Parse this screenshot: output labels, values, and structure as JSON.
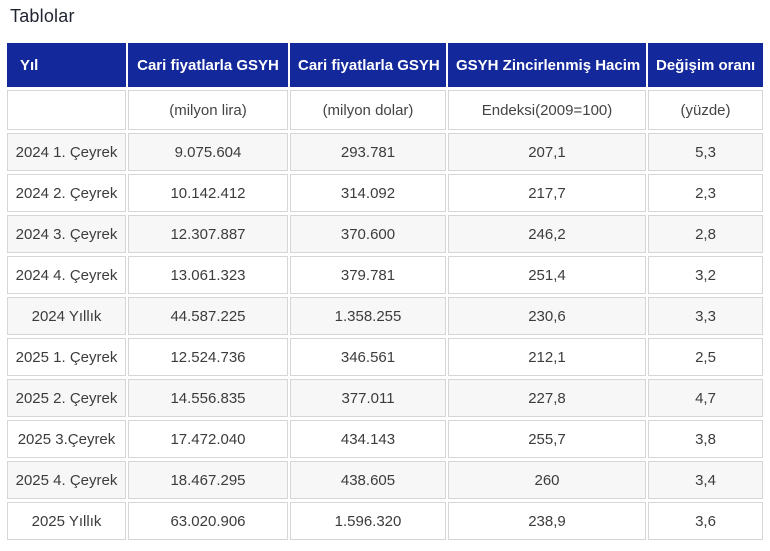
{
  "page": {
    "title": "Tablolar"
  },
  "colors": {
    "header_background": "#13289b",
    "header_text": "#ffffff",
    "row_stripe": "#f7f7f7",
    "cell_border": "#d6d6d6",
    "body_text": "#3c3c3c"
  },
  "table": {
    "columns": [
      {
        "header": "Yıl",
        "subheader": ""
      },
      {
        "header": "Cari fiyatlarla GSYH",
        "subheader": "(milyon lira)"
      },
      {
        "header": "Cari fiyatlarla GSYH",
        "subheader": "(milyon dolar)"
      },
      {
        "header": "GSYH Zincirlenmiş Hacim",
        "subheader": "Endeksi(2009=100)"
      },
      {
        "header": "Değişim oranı",
        "subheader": "(yüzde)"
      }
    ],
    "rows": [
      {
        "period": "2024 1. Çeyrek",
        "gdp_lira": "9.075.604",
        "gdp_dollar": "293.781",
        "volume_index": "207,1",
        "change_rate": "5,3"
      },
      {
        "period": "2024 2. Çeyrek",
        "gdp_lira": "10.142.412",
        "gdp_dollar": "314.092",
        "volume_index": "217,7",
        "change_rate": "2,3"
      },
      {
        "period": "2024 3. Çeyrek",
        "gdp_lira": "12.307.887",
        "gdp_dollar": "370.600",
        "volume_index": "246,2",
        "change_rate": "2,8"
      },
      {
        "period": "2024 4. Çeyrek",
        "gdp_lira": "13.061.323",
        "gdp_dollar": "379.781",
        "volume_index": "251,4",
        "change_rate": "3,2"
      },
      {
        "period": "2024 Yıllık",
        "gdp_lira": "44.587.225",
        "gdp_dollar": "1.358.255",
        "volume_index": "230,6",
        "change_rate": "3,3"
      },
      {
        "period": "2025 1. Çeyrek",
        "gdp_lira": "12.524.736",
        "gdp_dollar": "346.561",
        "volume_index": "212,1",
        "change_rate": "2,5"
      },
      {
        "period": "2025 2. Çeyrek",
        "gdp_lira": "14.556.835",
        "gdp_dollar": "377.011",
        "volume_index": "227,8",
        "change_rate": "4,7"
      },
      {
        "period": "2025 3.Çeyrek",
        "gdp_lira": "17.472.040",
        "gdp_dollar": "434.143",
        "volume_index": "255,7",
        "change_rate": "3,8"
      },
      {
        "period": "2025 4. Çeyrek",
        "gdp_lira": "18.467.295",
        "gdp_dollar": "438.605",
        "volume_index": "260",
        "change_rate": "3,4"
      },
      {
        "period": "2025 Yıllık",
        "gdp_lira": "63.020.906",
        "gdp_dollar": "1.596.320",
        "volume_index": "238,9",
        "change_rate": "3,6"
      }
    ]
  },
  "chart_data": {
    "type": "table",
    "title": "Tablolar",
    "columns": [
      "Yıl",
      "Cari fiyatlarla GSYH (milyon lira)",
      "Cari fiyatlarla GSYH (milyon dolar)",
      "GSYH Zincirlenmiş Hacim Endeksi(2009=100)",
      "Değişim oranı (yüzde)"
    ],
    "rows": [
      [
        "2024 1. Çeyrek",
        9075604,
        293781,
        207.1,
        5.3
      ],
      [
        "2024 2. Çeyrek",
        10142412,
        314092,
        217.7,
        2.3
      ],
      [
        "2024 3. Çeyrek",
        12307887,
        370600,
        246.2,
        2.8
      ],
      [
        "2024 4. Çeyrek",
        13061323,
        379781,
        251.4,
        3.2
      ],
      [
        "2024 Yıllık",
        44587225,
        1358255,
        230.6,
        3.3
      ],
      [
        "2025 1. Çeyrek",
        12524736,
        346561,
        212.1,
        2.5
      ],
      [
        "2025 2. Çeyrek",
        14556835,
        377011,
        227.8,
        4.7
      ],
      [
        "2025 3.Çeyrek",
        17472040,
        434143,
        255.7,
        3.8
      ],
      [
        "2025 4. Çeyrek",
        18467295,
        438605,
        260,
        3.4
      ],
      [
        "2025 Yıllık",
        63020906,
        1596320,
        238.9,
        3.6
      ]
    ]
  }
}
